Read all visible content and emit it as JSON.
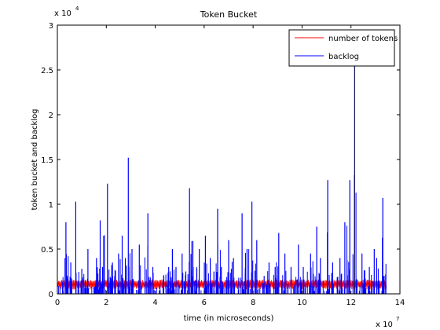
{
  "chart_data": {
    "type": "line",
    "title": "Token Bucket",
    "xlabel": "time (in microseconds)",
    "ylabel": "token bucket and backlog",
    "x_multiplier": "x 10",
    "x_exponent": "7",
    "y_multiplier": "x 10",
    "y_exponent": "4",
    "xlim": [
      0,
      14
    ],
    "ylim": [
      0,
      3
    ],
    "x_ticks": [
      0,
      2,
      4,
      6,
      8,
      10,
      12,
      14
    ],
    "x_tick_labels": [
      "0",
      "2",
      "4",
      "6",
      "8",
      "10",
      "12",
      "14"
    ],
    "y_ticks": [
      0,
      0.5,
      1,
      1.5,
      2,
      2.5,
      3
    ],
    "y_tick_labels": [
      "0",
      "0.5",
      "1",
      "1.5",
      "2",
      "2.5",
      "3"
    ],
    "grid": false,
    "legend_position": "top-right",
    "x_end": 13.45,
    "series": [
      {
        "name": "number of tokens",
        "color": "#ff0000",
        "kind": "band",
        "low": 0.05,
        "high": 0.16
      },
      {
        "name": "backlog",
        "color": "#0000ff",
        "kind": "spikes",
        "peaks": [
          [
            0.35,
            0.8
          ],
          [
            0.55,
            0.35
          ],
          [
            0.75,
            1.03
          ],
          [
            1.0,
            0.28
          ],
          [
            1.25,
            0.5
          ],
          [
            1.6,
            0.4
          ],
          [
            1.75,
            0.82
          ],
          [
            1.85,
            0.3
          ],
          [
            2.05,
            1.23
          ],
          [
            2.25,
            0.35
          ],
          [
            2.5,
            0.45
          ],
          [
            2.65,
            0.65
          ],
          [
            2.78,
            0.4
          ],
          [
            2.9,
            1.52
          ],
          [
            3.05,
            0.5
          ],
          [
            3.35,
            0.55
          ],
          [
            3.7,
            0.9
          ],
          [
            3.9,
            0.3
          ],
          [
            4.35,
            0.2
          ],
          [
            4.55,
            0.3
          ],
          [
            4.7,
            0.5
          ],
          [
            4.85,
            0.3
          ],
          [
            5.1,
            0.45
          ],
          [
            5.25,
            0.25
          ],
          [
            5.4,
            1.18
          ],
          [
            5.55,
            0.3
          ],
          [
            5.8,
            0.5
          ],
          [
            6.05,
            0.65
          ],
          [
            6.25,
            0.4
          ],
          [
            6.4,
            0.25
          ],
          [
            6.55,
            0.95
          ],
          [
            6.7,
            0.3
          ],
          [
            7.0,
            0.6
          ],
          [
            7.2,
            0.4
          ],
          [
            7.55,
            0.9
          ],
          [
            7.75,
            0.5
          ],
          [
            7.95,
            1.03
          ],
          [
            8.15,
            0.6
          ],
          [
            8.45,
            0.2
          ],
          [
            8.65,
            0.35
          ],
          [
            8.9,
            0.3
          ],
          [
            9.05,
            0.68
          ],
          [
            9.3,
            0.45
          ],
          [
            9.55,
            0.3
          ],
          [
            9.85,
            0.55
          ],
          [
            10.05,
            0.3
          ],
          [
            10.35,
            0.45
          ],
          [
            10.6,
            0.75
          ],
          [
            10.75,
            0.4
          ],
          [
            11.05,
            1.27
          ],
          [
            11.25,
            0.35
          ],
          [
            11.55,
            0.4
          ],
          [
            11.75,
            0.8
          ],
          [
            11.95,
            1.27
          ],
          [
            12.15,
            2.55
          ],
          [
            12.45,
            0.45
          ],
          [
            12.75,
            0.3
          ],
          [
            12.95,
            0.5
          ],
          [
            13.05,
            0.4
          ],
          [
            13.3,
            1.07
          ]
        ]
      }
    ]
  }
}
